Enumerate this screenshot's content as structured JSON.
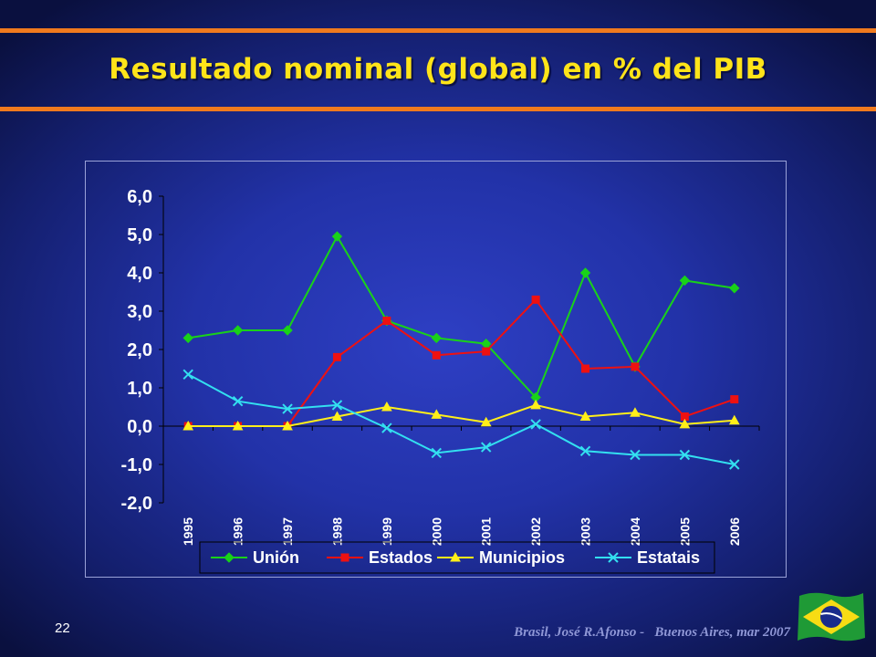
{
  "slide": {
    "title": "Resultado nominal (global) en % del PIB",
    "page_number": "22",
    "footer": "Brasil, José R.Afonso -   Buenos Aires, mar 2007"
  },
  "colors": {
    "accent_rule": "#f07a1e",
    "title": "#ffe419",
    "background": "#2232a8"
  },
  "chart_data": {
    "type": "line",
    "title": "",
    "xlabel": "",
    "ylabel": "",
    "categories": [
      "1995",
      "1996",
      "1997",
      "1998",
      "1999",
      "2000",
      "2001",
      "2002",
      "2003",
      "2004",
      "2005",
      "2006"
    ],
    "ylim": [
      -2.0,
      6.0
    ],
    "yticks": [
      -2.0,
      -1.0,
      0.0,
      1.0,
      2.0,
      3.0,
      4.0,
      5.0,
      6.0
    ],
    "ytick_labels": [
      "-2,0",
      "-1,0",
      "0,0",
      "1,0",
      "2,0",
      "3,0",
      "4,0",
      "5,0",
      "6,0"
    ],
    "grid": false,
    "legend_position": "bottom",
    "series": [
      {
        "name": "Unión",
        "color": "#19d219",
        "marker": "diamond",
        "values": [
          2.3,
          2.5,
          2.5,
          4.95,
          2.75,
          2.3,
          2.15,
          0.75,
          4.0,
          1.55,
          3.8,
          3.6
        ]
      },
      {
        "name": "Estados",
        "color": "#ee1111",
        "marker": "square",
        "values": [
          0.0,
          0.0,
          0.0,
          1.8,
          2.75,
          1.85,
          1.95,
          3.3,
          1.5,
          1.55,
          0.25,
          0.7
        ]
      },
      {
        "name": "Municipios",
        "color": "#ffef19",
        "marker": "triangle",
        "values": [
          0.0,
          0.0,
          0.0,
          0.25,
          0.5,
          0.3,
          0.1,
          0.55,
          0.25,
          0.35,
          0.05,
          0.15
        ]
      },
      {
        "name": "Estatais",
        "color": "#33e0f0",
        "marker": "x",
        "values": [
          1.35,
          0.65,
          0.45,
          0.55,
          -0.05,
          -0.7,
          -0.55,
          0.05,
          -0.65,
          -0.75,
          -0.75,
          -1.0
        ]
      }
    ]
  }
}
